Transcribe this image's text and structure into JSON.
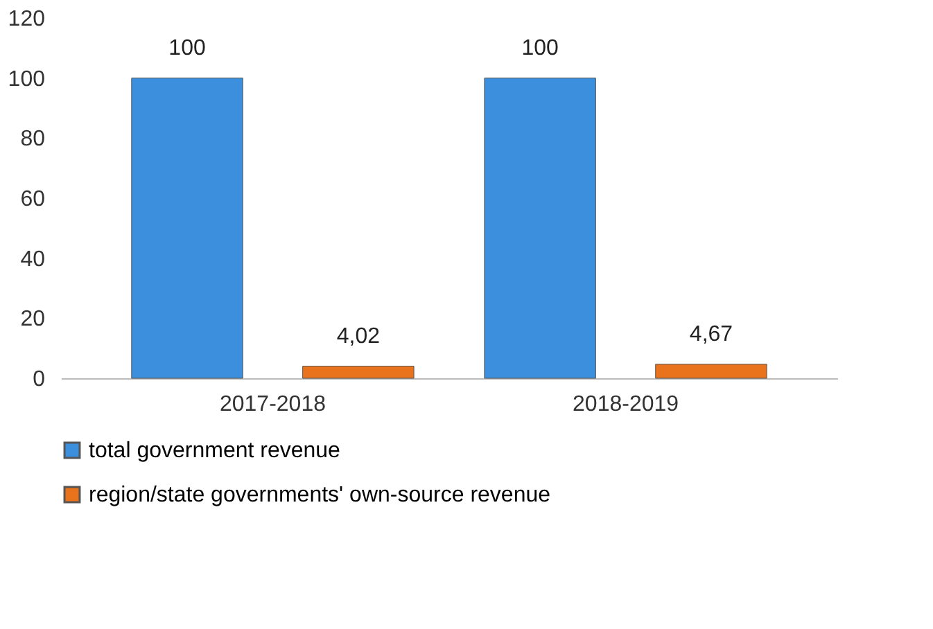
{
  "chart_data": {
    "type": "bar",
    "categories": [
      "2017-2018",
      "2018-2019"
    ],
    "series": [
      {
        "name": "total government revenue",
        "color": "#3b8fdc",
        "values": [
          100,
          100
        ],
        "value_labels": [
          "100",
          "100"
        ]
      },
      {
        "name": "region/state governments' own-source revenue",
        "color": "#e8731c",
        "values": [
          4.02,
          4.67
        ],
        "value_labels": [
          "4,02",
          "4,67"
        ]
      }
    ],
    "ylim": [
      0,
      120
    ],
    "yticks": [
      0,
      20,
      40,
      60,
      80,
      100,
      120
    ],
    "grid": false,
    "legend": "bottom left"
  }
}
